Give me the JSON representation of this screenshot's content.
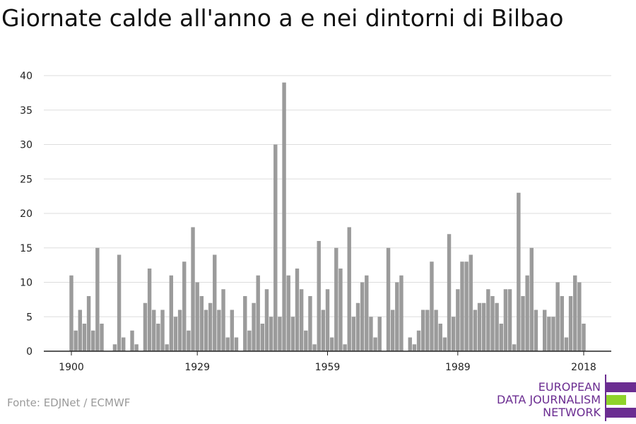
{
  "title": "Giornate calde all'anno a e nei dintorni di Bilbao",
  "source": "Fonte: EDJNet / ECMWF",
  "logo": {
    "line1": "EUROPEAN",
    "line2": "DATA JOURNALISM",
    "line3": "NETWORK",
    "purple": "#6b2d91",
    "green": "#8fd32a"
  },
  "colors": {
    "bar": "#9b9b9b",
    "grid": "#dddddd",
    "axis": "#222222"
  },
  "chart_data": {
    "type": "bar",
    "title": "Giornate calde all'anno a e nei dintorni di Bilbao",
    "xlabel": "",
    "ylabel": "",
    "ylim": [
      0,
      40
    ],
    "yticks": [
      0,
      5,
      10,
      15,
      20,
      25,
      30,
      35,
      40
    ],
    "xticks": [
      1900,
      1929,
      1959,
      1989,
      2018
    ],
    "grid": true,
    "legend": "none",
    "x": [
      1900,
      1901,
      1902,
      1903,
      1904,
      1905,
      1906,
      1907,
      1908,
      1909,
      1910,
      1911,
      1912,
      1913,
      1914,
      1915,
      1916,
      1917,
      1918,
      1919,
      1920,
      1921,
      1922,
      1923,
      1924,
      1925,
      1926,
      1927,
      1928,
      1929,
      1930,
      1931,
      1932,
      1933,
      1934,
      1935,
      1936,
      1937,
      1938,
      1939,
      1940,
      1941,
      1942,
      1943,
      1944,
      1945,
      1946,
      1947,
      1948,
      1949,
      1950,
      1951,
      1952,
      1953,
      1954,
      1955,
      1956,
      1957,
      1958,
      1959,
      1960,
      1961,
      1962,
      1963,
      1964,
      1965,
      1966,
      1967,
      1968,
      1969,
      1970,
      1971,
      1972,
      1973,
      1974,
      1975,
      1976,
      1977,
      1978,
      1979,
      1980,
      1981,
      1982,
      1983,
      1984,
      1985,
      1986,
      1987,
      1988,
      1989,
      1990,
      1991,
      1992,
      1993,
      1994,
      1995,
      1996,
      1997,
      1998,
      1999,
      2000,
      2001,
      2002,
      2003,
      2004,
      2005,
      2006,
      2007,
      2008,
      2009,
      2010,
      2011,
      2012,
      2013,
      2014,
      2015,
      2016,
      2017,
      2018
    ],
    "values": [
      11,
      3,
      6,
      4,
      8,
      3,
      15,
      4,
      0,
      0,
      1,
      14,
      2,
      0,
      3,
      1,
      0,
      7,
      12,
      6,
      4,
      6,
      1,
      11,
      5,
      6,
      13,
      3,
      18,
      10,
      8,
      6,
      7,
      14,
      6,
      9,
      2,
      6,
      2,
      0,
      8,
      3,
      7,
      11,
      4,
      9,
      5,
      30,
      5,
      39,
      11,
      5,
      12,
      9,
      3,
      8,
      1,
      16,
      6,
      9,
      2,
      15,
      12,
      1,
      18,
      5,
      7,
      10,
      11,
      5,
      2,
      5,
      0,
      15,
      6,
      10,
      11,
      0,
      2,
      1,
      3,
      6,
      6,
      13,
      6,
      4,
      2,
      17,
      5,
      9,
      13,
      13,
      14,
      6,
      7,
      7,
      9,
      8,
      7,
      4,
      9,
      9,
      1,
      23,
      8,
      11,
      15,
      6,
      0,
      6,
      5,
      5,
      10,
      8,
      2,
      8,
      11,
      10,
      4
    ]
  }
}
